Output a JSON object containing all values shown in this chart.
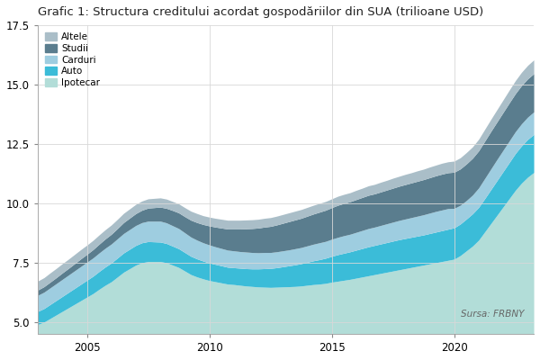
{
  "title": "Grafic 1: Structura creditului acordat gospodăriilor din SUA (trilioane USD)",
  "source": "Sursa: FRBNY",
  "years": [
    2003.0,
    2003.25,
    2003.5,
    2003.75,
    2004.0,
    2004.25,
    2004.5,
    2004.75,
    2005.0,
    2005.25,
    2005.5,
    2005.75,
    2006.0,
    2006.25,
    2006.5,
    2006.75,
    2007.0,
    2007.25,
    2007.5,
    2007.75,
    2008.0,
    2008.25,
    2008.5,
    2008.75,
    2009.0,
    2009.25,
    2009.5,
    2009.75,
    2010.0,
    2010.25,
    2010.5,
    2010.75,
    2011.0,
    2011.25,
    2011.5,
    2011.75,
    2012.0,
    2012.25,
    2012.5,
    2012.75,
    2013.0,
    2013.25,
    2013.5,
    2013.75,
    2014.0,
    2014.25,
    2014.5,
    2014.75,
    2015.0,
    2015.25,
    2015.5,
    2015.75,
    2016.0,
    2016.25,
    2016.5,
    2016.75,
    2017.0,
    2017.25,
    2017.5,
    2017.75,
    2018.0,
    2018.25,
    2018.5,
    2018.75,
    2019.0,
    2019.25,
    2019.5,
    2019.75,
    2020.0,
    2020.25,
    2020.5,
    2020.75,
    2021.0,
    2021.25,
    2021.5,
    2021.75,
    2022.0,
    2022.25,
    2022.5,
    2022.75,
    2023.0,
    2023.25
  ],
  "ipotecar": [
    4.9,
    5.0,
    5.15,
    5.3,
    5.45,
    5.6,
    5.75,
    5.9,
    6.05,
    6.2,
    6.38,
    6.55,
    6.7,
    6.9,
    7.1,
    7.25,
    7.4,
    7.5,
    7.55,
    7.55,
    7.55,
    7.5,
    7.4,
    7.3,
    7.15,
    7.0,
    6.9,
    6.82,
    6.75,
    6.7,
    6.65,
    6.6,
    6.58,
    6.55,
    6.52,
    6.5,
    6.48,
    6.47,
    6.46,
    6.47,
    6.48,
    6.49,
    6.5,
    6.52,
    6.55,
    6.58,
    6.6,
    6.63,
    6.68,
    6.72,
    6.76,
    6.8,
    6.85,
    6.9,
    6.95,
    7.0,
    7.05,
    7.1,
    7.15,
    7.2,
    7.25,
    7.3,
    7.35,
    7.4,
    7.45,
    7.5,
    7.55,
    7.6,
    7.65,
    7.8,
    8.0,
    8.2,
    8.45,
    8.8,
    9.15,
    9.5,
    9.85,
    10.2,
    10.55,
    10.85,
    11.1,
    11.3
  ],
  "auto": [
    0.55,
    0.57,
    0.59,
    0.61,
    0.63,
    0.65,
    0.67,
    0.69,
    0.71,
    0.73,
    0.75,
    0.77,
    0.79,
    0.8,
    0.81,
    0.82,
    0.83,
    0.84,
    0.84,
    0.83,
    0.82,
    0.81,
    0.8,
    0.79,
    0.78,
    0.77,
    0.76,
    0.75,
    0.74,
    0.73,
    0.72,
    0.71,
    0.71,
    0.72,
    0.73,
    0.74,
    0.76,
    0.78,
    0.8,
    0.82,
    0.85,
    0.88,
    0.91,
    0.94,
    0.97,
    1.0,
    1.03,
    1.06,
    1.09,
    1.12,
    1.14,
    1.16,
    1.18,
    1.2,
    1.22,
    1.23,
    1.24,
    1.25,
    1.26,
    1.27,
    1.27,
    1.27,
    1.27,
    1.27,
    1.28,
    1.29,
    1.3,
    1.31,
    1.32,
    1.33,
    1.34,
    1.36,
    1.38,
    1.4,
    1.43,
    1.46,
    1.49,
    1.52,
    1.55,
    1.57,
    1.59,
    1.6
  ],
  "carduri": [
    0.68,
    0.69,
    0.7,
    0.71,
    0.72,
    0.73,
    0.74,
    0.75,
    0.76,
    0.77,
    0.78,
    0.79,
    0.8,
    0.81,
    0.82,
    0.83,
    0.84,
    0.85,
    0.86,
    0.87,
    0.88,
    0.87,
    0.86,
    0.85,
    0.83,
    0.81,
    0.79,
    0.77,
    0.76,
    0.74,
    0.73,
    0.72,
    0.71,
    0.7,
    0.7,
    0.69,
    0.68,
    0.68,
    0.67,
    0.67,
    0.67,
    0.67,
    0.68,
    0.68,
    0.69,
    0.7,
    0.71,
    0.71,
    0.72,
    0.73,
    0.74,
    0.74,
    0.75,
    0.76,
    0.77,
    0.77,
    0.78,
    0.79,
    0.8,
    0.81,
    0.82,
    0.83,
    0.84,
    0.85,
    0.86,
    0.87,
    0.87,
    0.87,
    0.82,
    0.79,
    0.78,
    0.79,
    0.82,
    0.85,
    0.87,
    0.89,
    0.9,
    0.91,
    0.92,
    0.93,
    0.94,
    0.95
  ],
  "studii": [
    0.22,
    0.23,
    0.24,
    0.25,
    0.27,
    0.28,
    0.3,
    0.32,
    0.33,
    0.35,
    0.37,
    0.39,
    0.41,
    0.43,
    0.46,
    0.48,
    0.5,
    0.52,
    0.55,
    0.57,
    0.59,
    0.61,
    0.64,
    0.66,
    0.68,
    0.71,
    0.74,
    0.77,
    0.8,
    0.83,
    0.86,
    0.89,
    0.92,
    0.95,
    0.98,
    1.01,
    1.04,
    1.07,
    1.1,
    1.13,
    1.16,
    1.19,
    1.21,
    1.23,
    1.25,
    1.27,
    1.29,
    1.31,
    1.33,
    1.35,
    1.36,
    1.37,
    1.38,
    1.39,
    1.4,
    1.4,
    1.41,
    1.42,
    1.43,
    1.44,
    1.45,
    1.46,
    1.47,
    1.48,
    1.49,
    1.5,
    1.51,
    1.51,
    1.52,
    1.53,
    1.54,
    1.55,
    1.56,
    1.57,
    1.58,
    1.58,
    1.59,
    1.6,
    1.6,
    1.61,
    1.61,
    1.61
  ],
  "altele": [
    0.38,
    0.38,
    0.39,
    0.39,
    0.39,
    0.39,
    0.39,
    0.39,
    0.39,
    0.39,
    0.39,
    0.39,
    0.39,
    0.39,
    0.39,
    0.39,
    0.39,
    0.39,
    0.39,
    0.39,
    0.39,
    0.39,
    0.38,
    0.38,
    0.38,
    0.38,
    0.38,
    0.37,
    0.37,
    0.37,
    0.37,
    0.37,
    0.37,
    0.37,
    0.37,
    0.37,
    0.37,
    0.37,
    0.37,
    0.37,
    0.37,
    0.37,
    0.37,
    0.37,
    0.37,
    0.37,
    0.37,
    0.37,
    0.37,
    0.38,
    0.38,
    0.38,
    0.39,
    0.39,
    0.4,
    0.4,
    0.41,
    0.41,
    0.42,
    0.42,
    0.43,
    0.43,
    0.44,
    0.44,
    0.45,
    0.45,
    0.46,
    0.46,
    0.47,
    0.47,
    0.48,
    0.48,
    0.49,
    0.5,
    0.51,
    0.52,
    0.53,
    0.54,
    0.55,
    0.56,
    0.57,
    0.58
  ],
  "colors": {
    "ipotecar": "#b2ddd8",
    "auto": "#3bbcd8",
    "carduri": "#9ecde0",
    "studii": "#5a7d8e",
    "altele": "#aabec8"
  },
  "ylim": [
    4.5,
    17.5
  ],
  "yticks": [
    5.0,
    7.5,
    10.0,
    12.5,
    15.0,
    17.5
  ],
  "xticks": [
    2005,
    2010,
    2015,
    2020
  ],
  "legend_labels": [
    "Altele",
    "Studii",
    "Carduri",
    "Auto",
    "Ipotecar"
  ],
  "legend_colors": [
    "#aabec8",
    "#5a7d8e",
    "#9ecde0",
    "#3bbcd8",
    "#b2ddd8"
  ],
  "background_color": "#ffffff",
  "plot_bg_color": "#ffffff",
  "title_fontsize": 9.5,
  "tick_fontsize": 8.5
}
